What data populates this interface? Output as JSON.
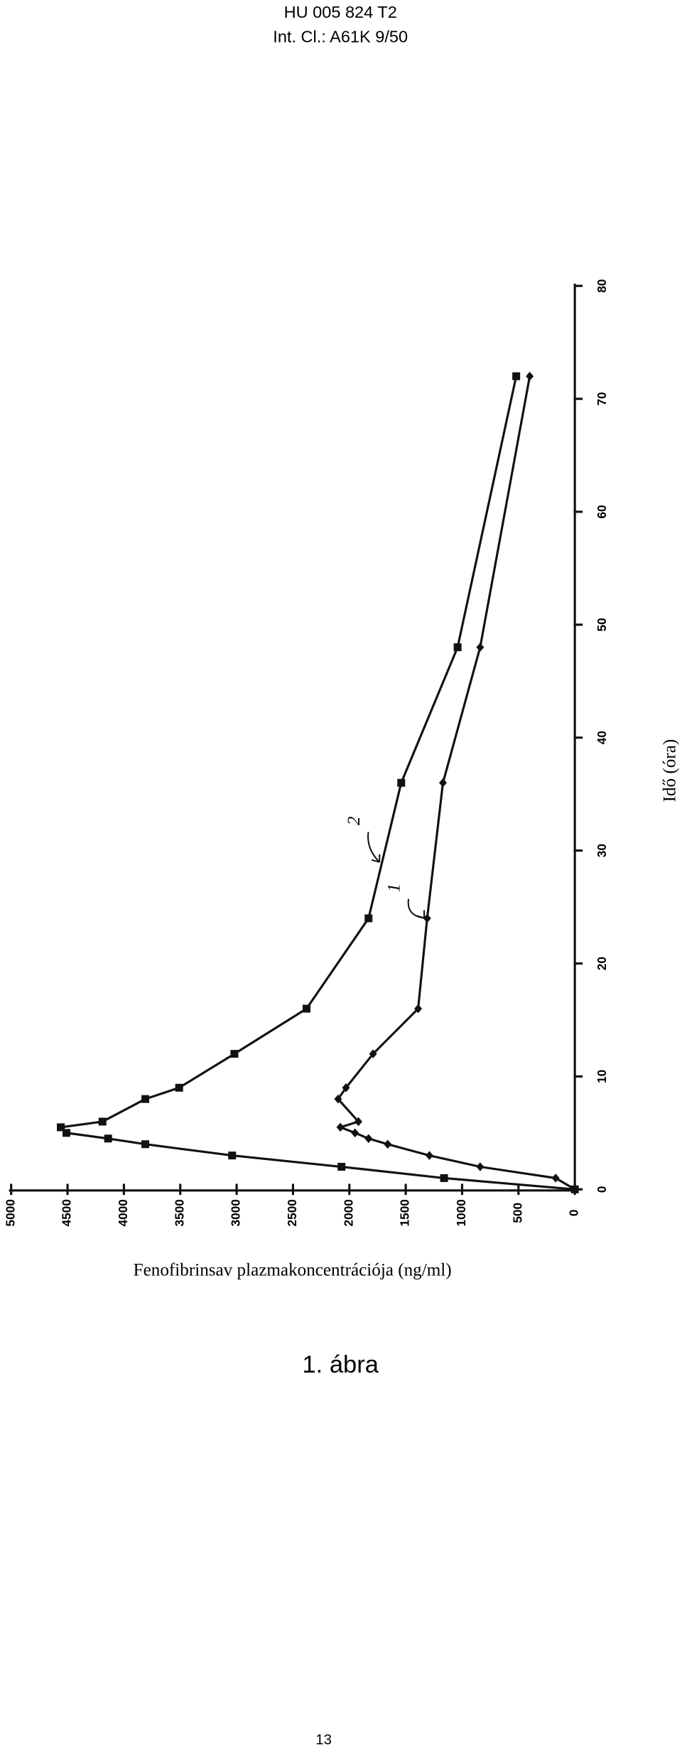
{
  "header": {
    "number": "HU 005 824 T2",
    "classification": "Int. Cl.: A61K 9/50"
  },
  "figure_caption": "1. ábra",
  "page_number": "13",
  "chart_data": {
    "type": "line",
    "x_label": "Idő (óra)",
    "y_label": "Fenofibrinsav plazmakoncentrációja (ng/ml)",
    "x": [
      0,
      1,
      2,
      3,
      4,
      4.5,
      5,
      5.5,
      6,
      8,
      9,
      12,
      16,
      24,
      36,
      48,
      72
    ],
    "series": [
      {
        "name": "1",
        "color": "#111111",
        "marker": "diamond",
        "values": [
          0,
          170,
          840,
          1290,
          1660,
          1830,
          1950,
          2080,
          1920,
          2100,
          2030,
          1790,
          1390,
          1310,
          1170,
          840,
          400
        ]
      },
      {
        "name": "2",
        "color": "#111111",
        "marker": "square",
        "values": [
          0,
          1160,
          2070,
          3040,
          3810,
          4140,
          4510,
          4560,
          4190,
          3810,
          3510,
          3020,
          2380,
          1830,
          1540,
          1040,
          520
        ]
      }
    ],
    "xlim": [
      0,
      80
    ],
    "xticks": [
      0,
      10,
      20,
      30,
      40,
      50,
      60,
      70,
      80
    ],
    "ylim": [
      0,
      5000
    ],
    "yticks": [
      0,
      500,
      1000,
      1500,
      2000,
      2500,
      3000,
      3500,
      4000,
      4500,
      5000
    ]
  }
}
